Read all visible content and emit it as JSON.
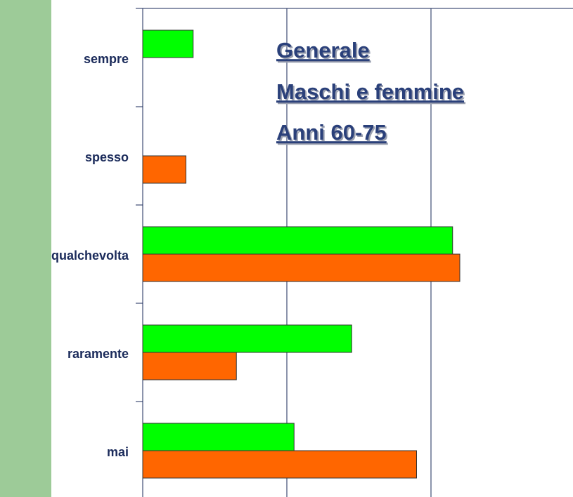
{
  "chart_data": {
    "type": "hbar",
    "title_lines": [
      "Generale",
      "Maschi e femmine",
      "Anni 60-75"
    ],
    "categories": [
      "sempre",
      "spesso",
      "qualchevolta",
      "raramente",
      "mai"
    ],
    "series": [
      {
        "color": "#00ff00",
        "values": [
          3.5,
          null,
          21.5,
          14.5,
          10.5
        ]
      },
      {
        "color": "#ff6600",
        "values": [
          null,
          3.0,
          22.0,
          6.5,
          19.0
        ]
      }
    ],
    "xlim": [
      0,
      30
    ],
    "xticks": [
      0,
      10,
      20,
      30
    ],
    "grid": true
  }
}
